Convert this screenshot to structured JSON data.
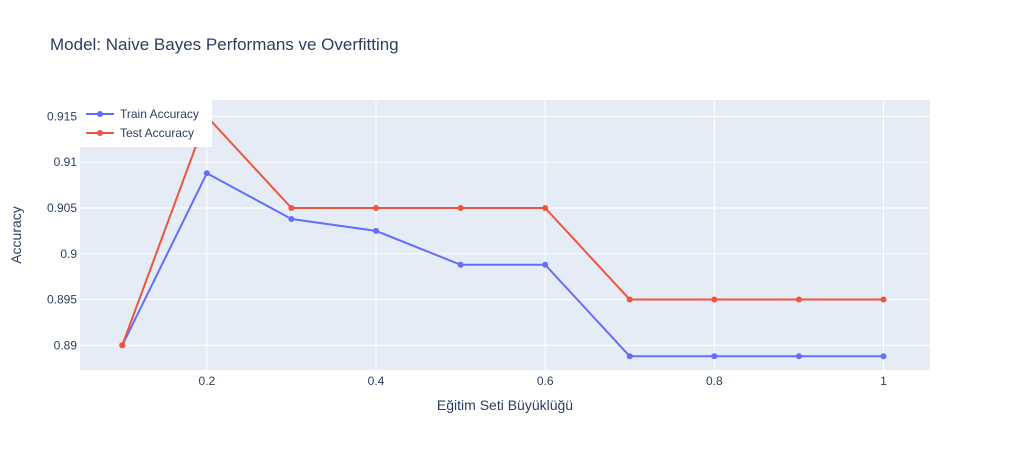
{
  "chart_data": {
    "type": "line",
    "title": "Model: Naive Bayes Performans ve Overfitting",
    "xlabel": "Eğitim Seti Büyüklüğü",
    "ylabel": "Accuracy",
    "x": [
      0.1,
      0.2,
      0.3,
      0.4,
      0.5,
      0.6,
      0.7,
      0.8,
      0.9,
      1.0
    ],
    "xlim": [
      0.05,
      1.055
    ],
    "ylim": [
      0.8873,
      0.9168
    ],
    "x_ticks": [
      0.2,
      0.4,
      0.6,
      0.8,
      1.0
    ],
    "x_tick_labels": [
      "0.2",
      "0.4",
      "0.6",
      "0.8",
      "1"
    ],
    "y_ticks": [
      0.89,
      0.895,
      0.9,
      0.905,
      0.91,
      0.915
    ],
    "y_tick_labels": [
      "0.89",
      "0.895",
      "0.9",
      "0.905",
      "0.91",
      "0.915"
    ],
    "grid": true,
    "legend_position": "top-left",
    "series": [
      {
        "name": "Train Accuracy",
        "color": "#636efa",
        "values": [
          0.89,
          0.9088,
          0.9038,
          0.9025,
          0.8988,
          0.8988,
          0.8888,
          0.8888,
          0.8888,
          0.8888
        ]
      },
      {
        "name": "Test Accuracy",
        "color": "#ef553b",
        "values": [
          0.89,
          0.915,
          0.905,
          0.905,
          0.905,
          0.905,
          0.895,
          0.895,
          0.895,
          0.895
        ]
      }
    ]
  }
}
